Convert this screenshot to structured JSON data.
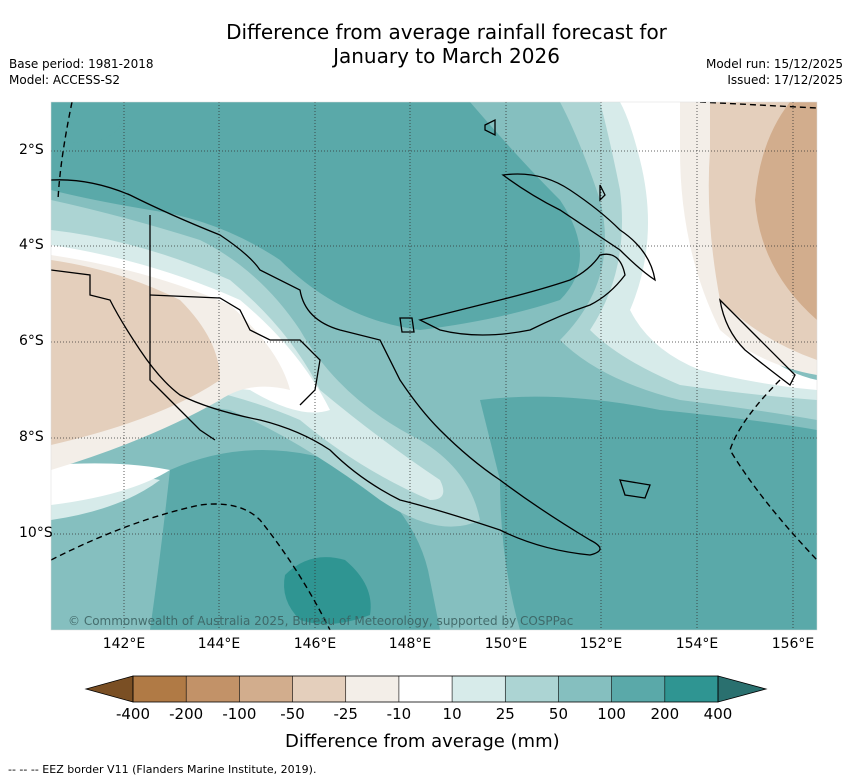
{
  "title_line1": "Difference from average rainfall forecast for",
  "title_line2": "January to March 2026",
  "base_period": "Base period: 1981-2018",
  "model": "Model: ACCESS-S2",
  "model_run": "Model run: 15/12/2025",
  "issued": "Issued: 17/12/2025",
  "copyright": "© Commonwealth of Australia 2025, Bureau of Meteorology, supported by COSPPac",
  "lat_labels": [
    "2°S",
    "4°S",
    "6°S",
    "8°S",
    "10°S"
  ],
  "lon_labels": [
    "142°E",
    "144°E",
    "146°E",
    "148°E",
    "150°E",
    "152°E",
    "154°E",
    "156°E"
  ],
  "colorbar": {
    "title": "Difference from average (mm)",
    "tick_labels": [
      "-400",
      "-200",
      "-100",
      "-50",
      "-25",
      "-10",
      "10",
      "25",
      "50",
      "100",
      "200",
      "400"
    ],
    "colors": [
      "#7a4f24",
      "#b07a45",
      "#c29268",
      "#d2ad8d",
      "#e4cfbc",
      "#f3eee8",
      "#ffffff",
      "#d7ebea",
      "#acd4d3",
      "#85bfbf",
      "#5aa9a9",
      "#2f9592",
      "#2a706f"
    ]
  },
  "legend_text": "--  --  -- EEZ border V11 (Flanders Marine Institute, 2019).",
  "colors": {
    "background": "#ffffff",
    "coast": "#000000",
    "grid": "#333333"
  }
}
